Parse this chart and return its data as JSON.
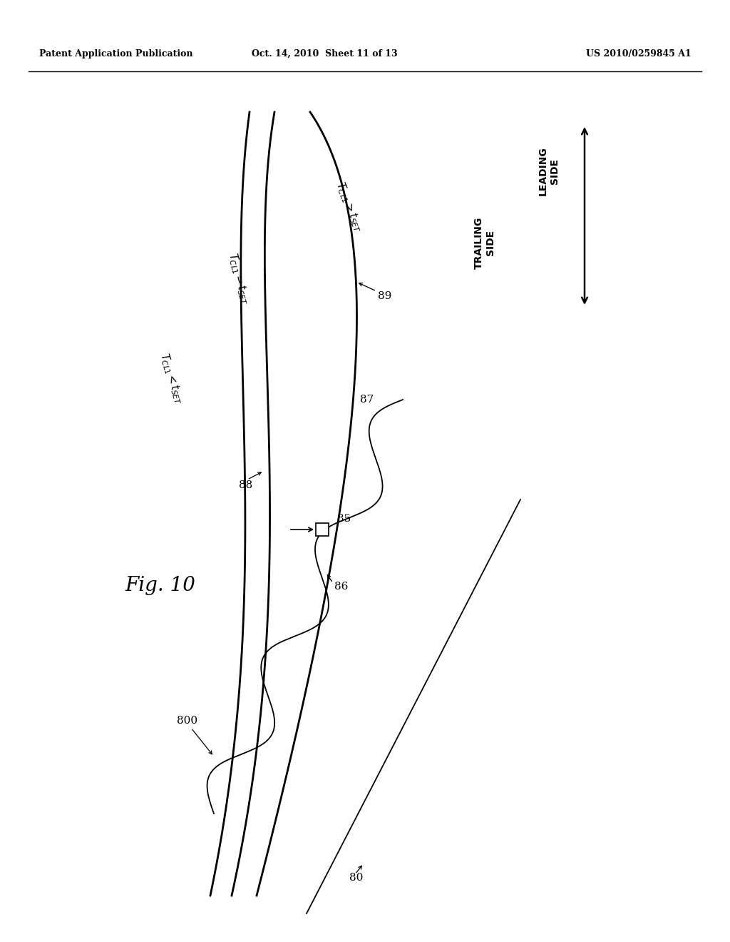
{
  "header_left": "Patent Application Publication",
  "header_center": "Oct. 14, 2010  Sheet 11 of 13",
  "header_right": "US 2010/0259845 A1",
  "fig_label": "Fig. 10",
  "bg_color": "#ffffff",
  "line_color": "#000000"
}
